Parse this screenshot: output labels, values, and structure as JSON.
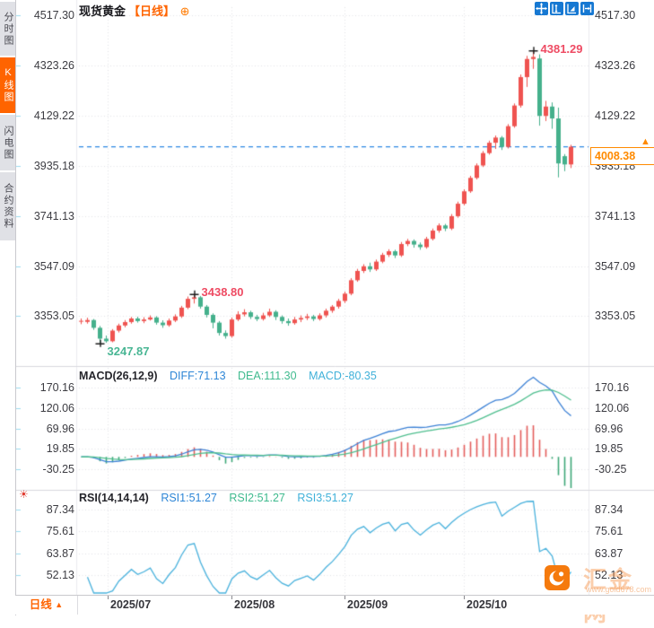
{
  "header": {
    "symbol": "现货黄金",
    "period": "【日线】",
    "gear_icon": "plus-circle-settings-icon"
  },
  "toolbar": {
    "icons": [
      "pan-crosshair-icon",
      "scale-y-axis-icon",
      "auto-fit-icon",
      "go-latest-icon"
    ]
  },
  "sidebar": {
    "tabs": [
      {
        "label": "分时图",
        "active": false
      },
      {
        "label": "K线图",
        "active": true
      },
      {
        "label": "闪电图",
        "active": false
      },
      {
        "label": "合约资料",
        "active": false
      }
    ]
  },
  "main_chart": {
    "y_axis_labels": [
      "4517.30",
      "4323.26",
      "4129.22",
      "3935.18",
      "3741.13",
      "3547.09",
      "3353.05"
    ],
    "current_price": "4008.38"
  },
  "macd": {
    "title": "MACD(26,12,9)",
    "diff": "DIFF:71.13",
    "dea": "DEA:111.30",
    "macd": "MACD:-80.35",
    "y_axis_labels": [
      "170.16",
      "120.06",
      "69.96",
      "19.85",
      "-30.25"
    ]
  },
  "rsi": {
    "title": "RSI(14,14,14)",
    "r1": "RSI1:51.27",
    "r2": "RSI2:51.27",
    "r3": "RSI3:51.27",
    "y_axis_labels": [
      "87.34",
      "75.61",
      "63.87",
      "52.13"
    ]
  },
  "bottom": {
    "period": "日线",
    "period_arrow": "▲",
    "months": [
      "2025/07",
      "2025/08",
      "2025/09",
      "2025/10"
    ]
  },
  "watermark": {
    "site_name": "汇金网",
    "site_url": "www.gold678.com"
  },
  "colors": {
    "up": "#ef5350",
    "down": "#45b08c",
    "accent_orange": "#ff6400",
    "current_line": "#2b87e3",
    "diff_line": "#3d82d6",
    "dea_line": "#4fbf8f",
    "rsi_line": "#4ab2dd",
    "hist_pos": "#e35d5b",
    "hist_neg": "#3da878",
    "grid": "#e2e3e8",
    "toolbar_blue": "#1678d2"
  },
  "chart_data": {
    "type": "candlestick",
    "title": "现货黄金 日线",
    "x_axis_months": [
      "2025/07",
      "2025/08",
      "2025/09",
      "2025/10"
    ],
    "y_range_main": [
      3240,
      4520
    ],
    "markers": {
      "high": {
        "label": "4381.29",
        "candle_index": 72,
        "at": "high"
      },
      "swing_high": {
        "label": "3438.80",
        "candle_index": 18,
        "at": "high"
      },
      "low": {
        "label": "3247.87",
        "candle_index": 3,
        "at": "low"
      }
    },
    "current_price": 4008.38,
    "indicators": {
      "macd": {
        "params": [
          26,
          12,
          9
        ],
        "diff": 71.13,
        "dea": 111.3,
        "hist": -80.35,
        "y_range": [
          -30.25,
          170.16
        ]
      },
      "rsi": {
        "params": [
          14,
          14,
          14
        ],
        "rsi1": 51.27,
        "rsi2": 51.27,
        "rsi3": 51.27,
        "y_range": [
          52.13,
          87.34
        ]
      }
    },
    "candles": [
      [
        3332,
        3344,
        3322,
        3335
      ],
      [
        3331,
        3347,
        3324,
        3338
      ],
      [
        3338,
        3342,
        3300,
        3308
      ],
      [
        3308,
        3315,
        3247.87,
        3266
      ],
      [
        3266,
        3278,
        3250,
        3256
      ],
      [
        3256,
        3303,
        3252,
        3297
      ],
      [
        3297,
        3324,
        3290,
        3317
      ],
      [
        3317,
        3338,
        3310,
        3330
      ],
      [
        3330,
        3350,
        3324,
        3344
      ],
      [
        3344,
        3351,
        3328,
        3334
      ],
      [
        3334,
        3349,
        3326,
        3340
      ],
      [
        3340,
        3356,
        3336,
        3348
      ],
      [
        3348,
        3353,
        3320,
        3328
      ],
      [
        3328,
        3337,
        3308,
        3318
      ],
      [
        3318,
        3344,
        3312,
        3336
      ],
      [
        3336,
        3360,
        3330,
        3352
      ],
      [
        3352,
        3393,
        3346,
        3386
      ],
      [
        3386,
        3429,
        3380,
        3420
      ],
      [
        3420,
        3438.8,
        3402,
        3426
      ],
      [
        3426,
        3431,
        3382,
        3390
      ],
      [
        3390,
        3396,
        3348,
        3358
      ],
      [
        3358,
        3364,
        3306,
        3328
      ],
      [
        3328,
        3334,
        3278,
        3288
      ],
      [
        3288,
        3298,
        3266,
        3276
      ],
      [
        3276,
        3348,
        3270,
        3340
      ],
      [
        3340,
        3372,
        3334,
        3360
      ],
      [
        3360,
        3380,
        3352,
        3368
      ],
      [
        3368,
        3374,
        3342,
        3350
      ],
      [
        3350,
        3358,
        3334,
        3342
      ],
      [
        3342,
        3366,
        3336,
        3356
      ],
      [
        3356,
        3382,
        3350,
        3370
      ],
      [
        3370,
        3376,
        3338,
        3350
      ],
      [
        3350,
        3356,
        3324,
        3334
      ],
      [
        3334,
        3344,
        3316,
        3326
      ],
      [
        3326,
        3350,
        3320,
        3340
      ],
      [
        3340,
        3356,
        3330,
        3346
      ],
      [
        3346,
        3362,
        3338,
        3352
      ],
      [
        3352,
        3358,
        3334,
        3342
      ],
      [
        3342,
        3364,
        3336,
        3356
      ],
      [
        3356,
        3382,
        3348,
        3374
      ],
      [
        3374,
        3396,
        3366,
        3390
      ],
      [
        3390,
        3420,
        3382,
        3412
      ],
      [
        3412,
        3448,
        3404,
        3440
      ],
      [
        3440,
        3500,
        3434,
        3492
      ],
      [
        3492,
        3536,
        3486,
        3528
      ],
      [
        3528,
        3554,
        3520,
        3546
      ],
      [
        3546,
        3560,
        3524,
        3534
      ],
      [
        3534,
        3572,
        3528,
        3564
      ],
      [
        3564,
        3598,
        3558,
        3590
      ],
      [
        3590,
        3612,
        3582,
        3604
      ],
      [
        3604,
        3610,
        3578,
        3588
      ],
      [
        3588,
        3640,
        3582,
        3632
      ],
      [
        3632,
        3652,
        3624,
        3644
      ],
      [
        3644,
        3650,
        3618,
        3630
      ],
      [
        3630,
        3638,
        3610,
        3620
      ],
      [
        3620,
        3660,
        3614,
        3652
      ],
      [
        3652,
        3692,
        3646,
        3684
      ],
      [
        3684,
        3712,
        3676,
        3704
      ],
      [
        3704,
        3710,
        3682,
        3692
      ],
      [
        3692,
        3748,
        3686,
        3740
      ],
      [
        3740,
        3796,
        3734,
        3788
      ],
      [
        3788,
        3844,
        3782,
        3836
      ],
      [
        3836,
        3896,
        3830,
        3888
      ],
      [
        3888,
        3944,
        3882,
        3936
      ],
      [
        3936,
        3992,
        3930,
        3984
      ],
      [
        3984,
        4032,
        3978,
        4024
      ],
      [
        4024,
        4052,
        4000,
        4044
      ],
      [
        4044,
        4050,
        3996,
        4008
      ],
      [
        4008,
        4096,
        4002,
        4088
      ],
      [
        4088,
        4176,
        4082,
        4168
      ],
      [
        4168,
        4288,
        4160,
        4278
      ],
      [
        4278,
        4360,
        4240,
        4348
      ],
      [
        4348,
        4381.29,
        4310,
        4356
      ],
      [
        4350,
        4366,
        4090,
        4128
      ],
      [
        4128,
        4186,
        4108,
        4164
      ],
      [
        4164,
        4180,
        4078,
        4118
      ],
      [
        4118,
        4160,
        3890,
        3944
      ],
      [
        3972,
        3980,
        3914,
        3940
      ],
      [
        3940,
        4016,
        3926,
        4008.38
      ]
    ]
  }
}
